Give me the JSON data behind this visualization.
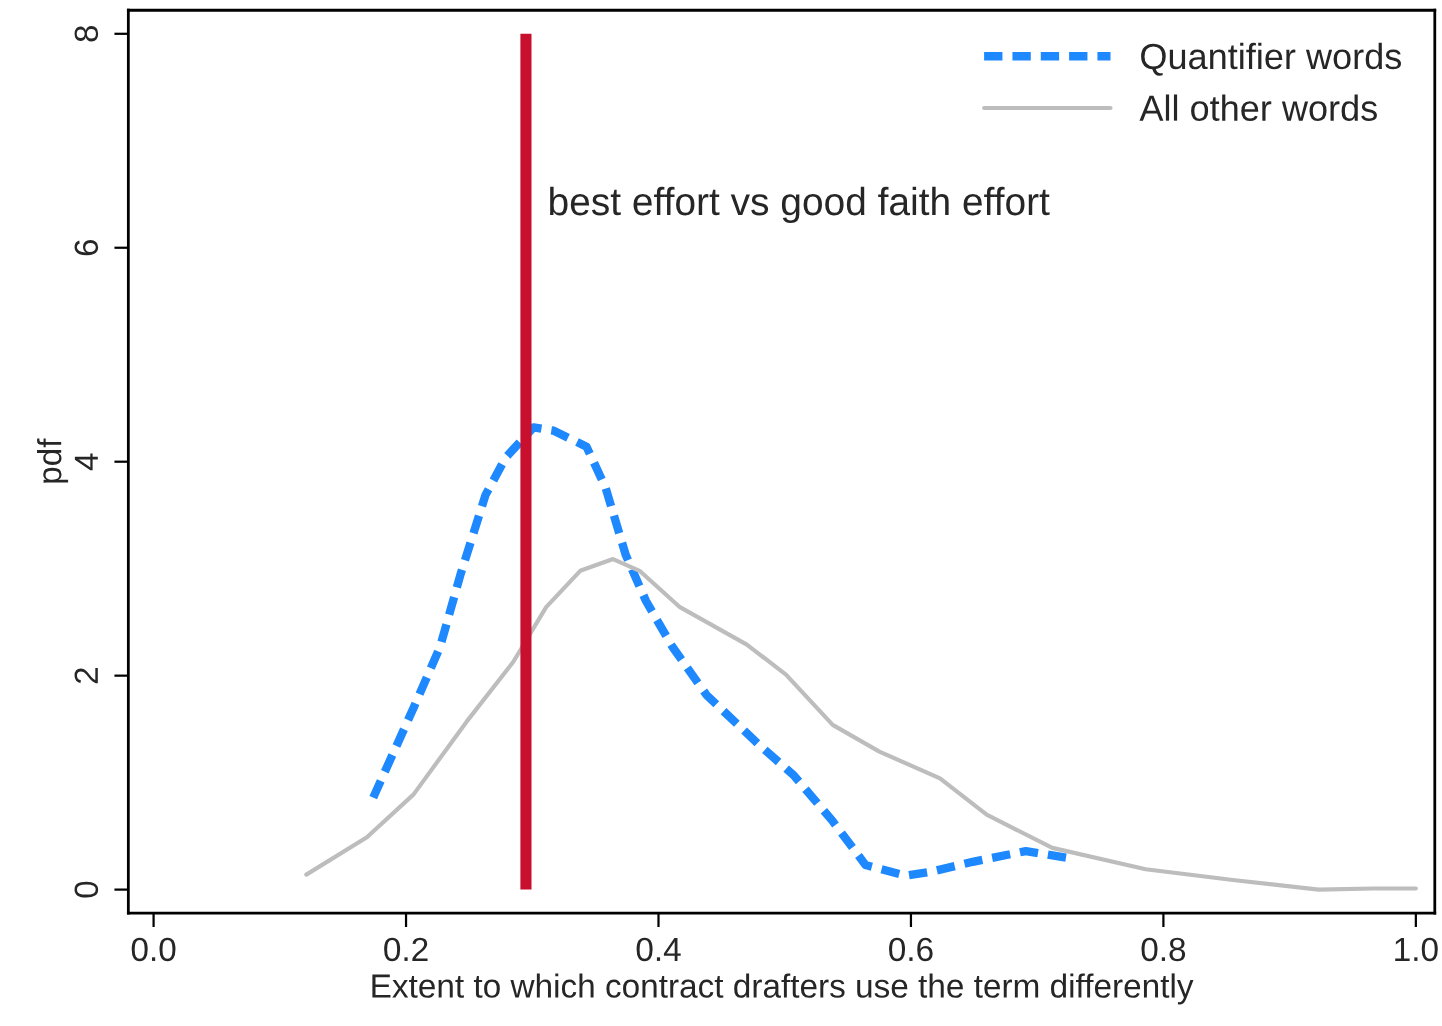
{
  "chart_data": {
    "type": "line",
    "xlabel": "Extent to which contract drafters use the term differently",
    "ylabel": "pdf",
    "xlim": [
      -0.02,
      1.015
    ],
    "ylim": [
      -0.22,
      8.22
    ],
    "xticks": [
      {
        "value": 0,
        "label": "0.0"
      },
      0.2,
      0.4,
      0.6,
      0.8,
      {
        "value": 1,
        "label": "1.0"
      }
    ],
    "yticks": [
      0,
      2,
      4,
      6,
      8
    ],
    "grid": false,
    "legend": "top right",
    "series": [
      {
        "name": "Quantifier words",
        "color": "#1e88ff",
        "line_style": "dashed",
        "x": [
          0.174,
          0.206,
          0.227,
          0.243,
          0.263,
          0.279,
          0.301,
          0.317,
          0.343,
          0.358,
          0.374,
          0.39,
          0.411,
          0.438,
          0.48,
          0.507,
          0.538,
          0.564,
          0.596,
          0.617,
          0.649,
          0.691,
          0.728
        ],
        "values": [
          0.86,
          1.7,
          2.27,
          2.94,
          3.69,
          4.04,
          4.32,
          4.29,
          4.14,
          3.76,
          3.13,
          2.7,
          2.27,
          1.82,
          1.35,
          1.07,
          0.64,
          0.23,
          0.13,
          0.17,
          0.26,
          0.36,
          0.29
        ]
      },
      {
        "name": "All other words",
        "color": "#bdbdbd",
        "line_style": "solid",
        "x": [
          0.121,
          0.169,
          0.206,
          0.248,
          0.285,
          0.311,
          0.338,
          0.364,
          0.385,
          0.417,
          0.47,
          0.501,
          0.538,
          0.575,
          0.623,
          0.66,
          0.712,
          0.786,
          0.855,
          0.923,
          0.966,
          1.0
        ],
        "values": [
          0.14,
          0.49,
          0.89,
          1.57,
          2.13,
          2.64,
          2.98,
          3.09,
          2.98,
          2.64,
          2.29,
          2.01,
          1.54,
          1.29,
          1.04,
          0.7,
          0.39,
          0.19,
          0.09,
          0.0,
          0.01,
          0.01
        ]
      }
    ],
    "ref_lines": [
      {
        "axis": "x",
        "value": 0.295,
        "label": "best effort vs good faith effort",
        "color": "#c8102e",
        "line_style": "solid"
      }
    ]
  }
}
